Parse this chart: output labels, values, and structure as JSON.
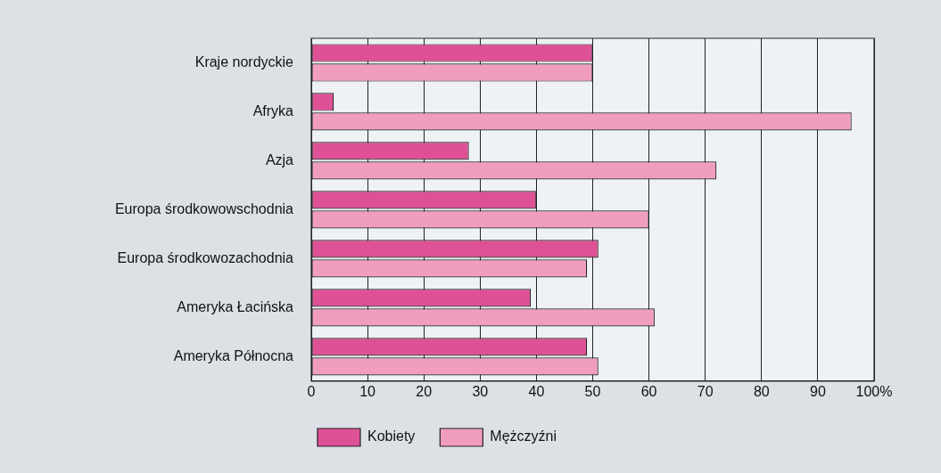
{
  "chart_data": {
    "type": "bar",
    "orientation": "horizontal",
    "categories": [
      "Kraje nordyckie",
      "Afryka",
      "Azja",
      "Europa środkowowschodnia",
      "Europa środkowozachodnia",
      "Ameryka Łacińska",
      "Ameryka Północna"
    ],
    "series": [
      {
        "name": "Kobiety",
        "color": "#de5196",
        "values": [
          50,
          4,
          28,
          40,
          51,
          39,
          49
        ]
      },
      {
        "name": "Mężczyźni",
        "color": "#f19dbf",
        "values": [
          50,
          96,
          72,
          60,
          49,
          61,
          51
        ]
      }
    ],
    "xlim": [
      0,
      100
    ],
    "xticks": [
      0,
      10,
      20,
      30,
      40,
      50,
      60,
      70,
      80,
      90,
      {
        "value": 100,
        "label": "100%"
      }
    ],
    "grid": "x",
    "legend": "bottom"
  }
}
